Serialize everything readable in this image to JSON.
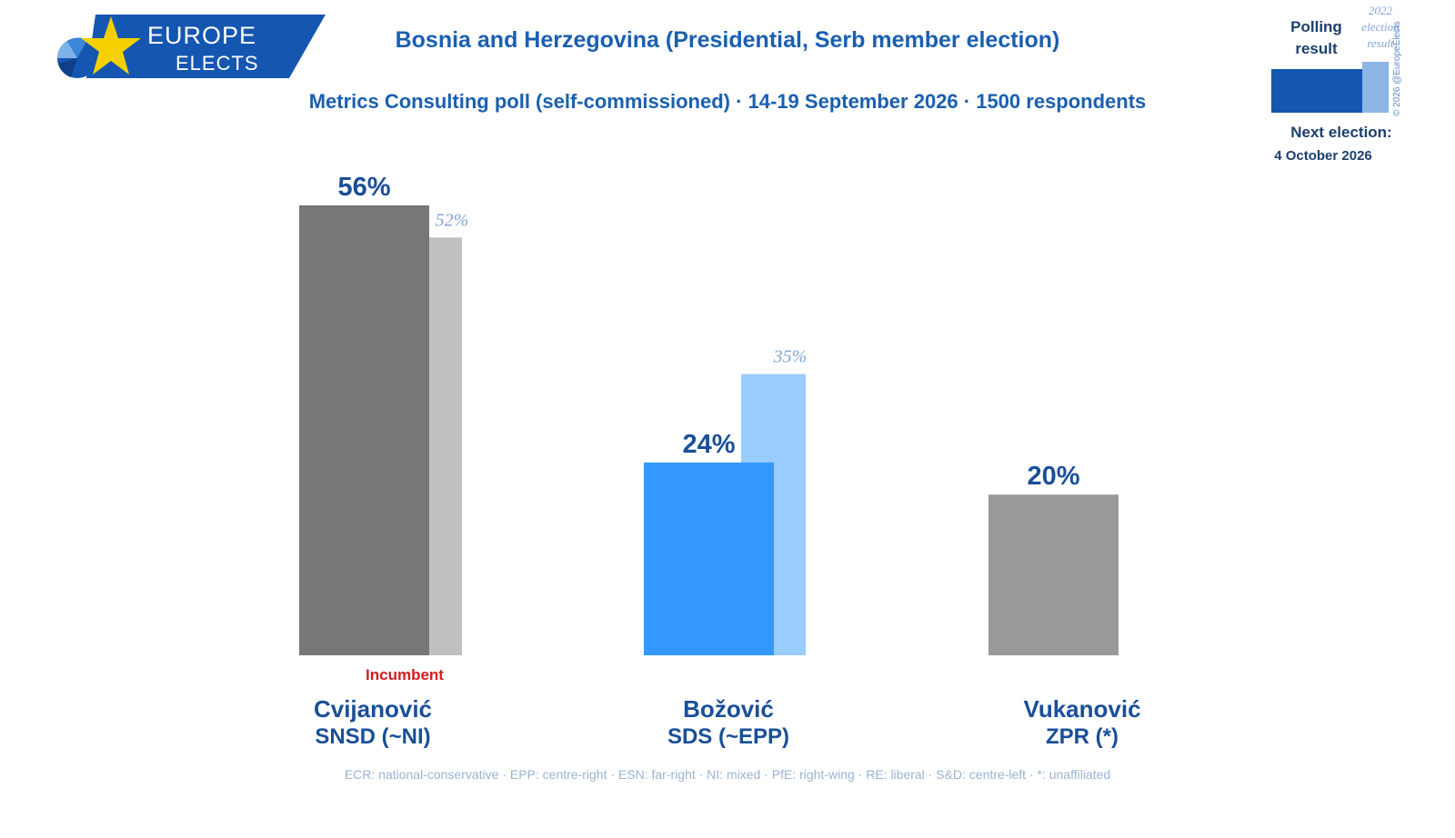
{
  "brand": {
    "logo_line1": "EUROPE",
    "logo_line2": "ELECTS",
    "colors": {
      "banner": "#1556b0",
      "star": "#f5d000"
    }
  },
  "header": {
    "title": "Bosnia and Herzegovina (Presidential, Serb member election)",
    "subtitle": "Metrics Consulting poll (self-commissioned) · 14-19 September 2026 · 1500 respondents"
  },
  "legend": {
    "polling_label": "Polling result",
    "result_label": "2022 election result",
    "copyright": "© 2026 @EuropeElects",
    "next_election_label": "Next election:",
    "next_election_date": "4 October 2026"
  },
  "chart_data": {
    "type": "bar",
    "ylim": [
      0,
      60
    ],
    "grid": false,
    "legend_position": "top-right",
    "categories": [
      {
        "candidate": "Cvijanović",
        "party": "SNSD (~NI)",
        "poll": 56,
        "previous": 52,
        "poll_label": "56%",
        "previous_label": "52%",
        "poll_color": "#777777",
        "previous_color": "#c0c0c0"
      },
      {
        "candidate": "Božović",
        "party": "SDS (~EPP)",
        "poll": 24,
        "previous": 35,
        "poll_label": "24%",
        "previous_label": "35%",
        "poll_color": "#3399ff",
        "previous_color": "#99ccff"
      },
      {
        "candidate": "Vukanović",
        "party": "ZPR (*)",
        "poll": 20,
        "previous": null,
        "poll_label": "20%",
        "previous_label": null,
        "poll_color": "#999999",
        "previous_color": null
      }
    ],
    "incumbent_label": "Incumbent",
    "label_colors": {
      "poll": "#1a4f99",
      "previous": "#7fa6d3",
      "incumbent": "#d41d1d"
    }
  },
  "footnote": "ECR: national-conservative · EPP: centre-right · ESN: far-right · NI: mixed · PfE: right-wing · RE: liberal · S&D: centre-left · *: unaffiliated"
}
